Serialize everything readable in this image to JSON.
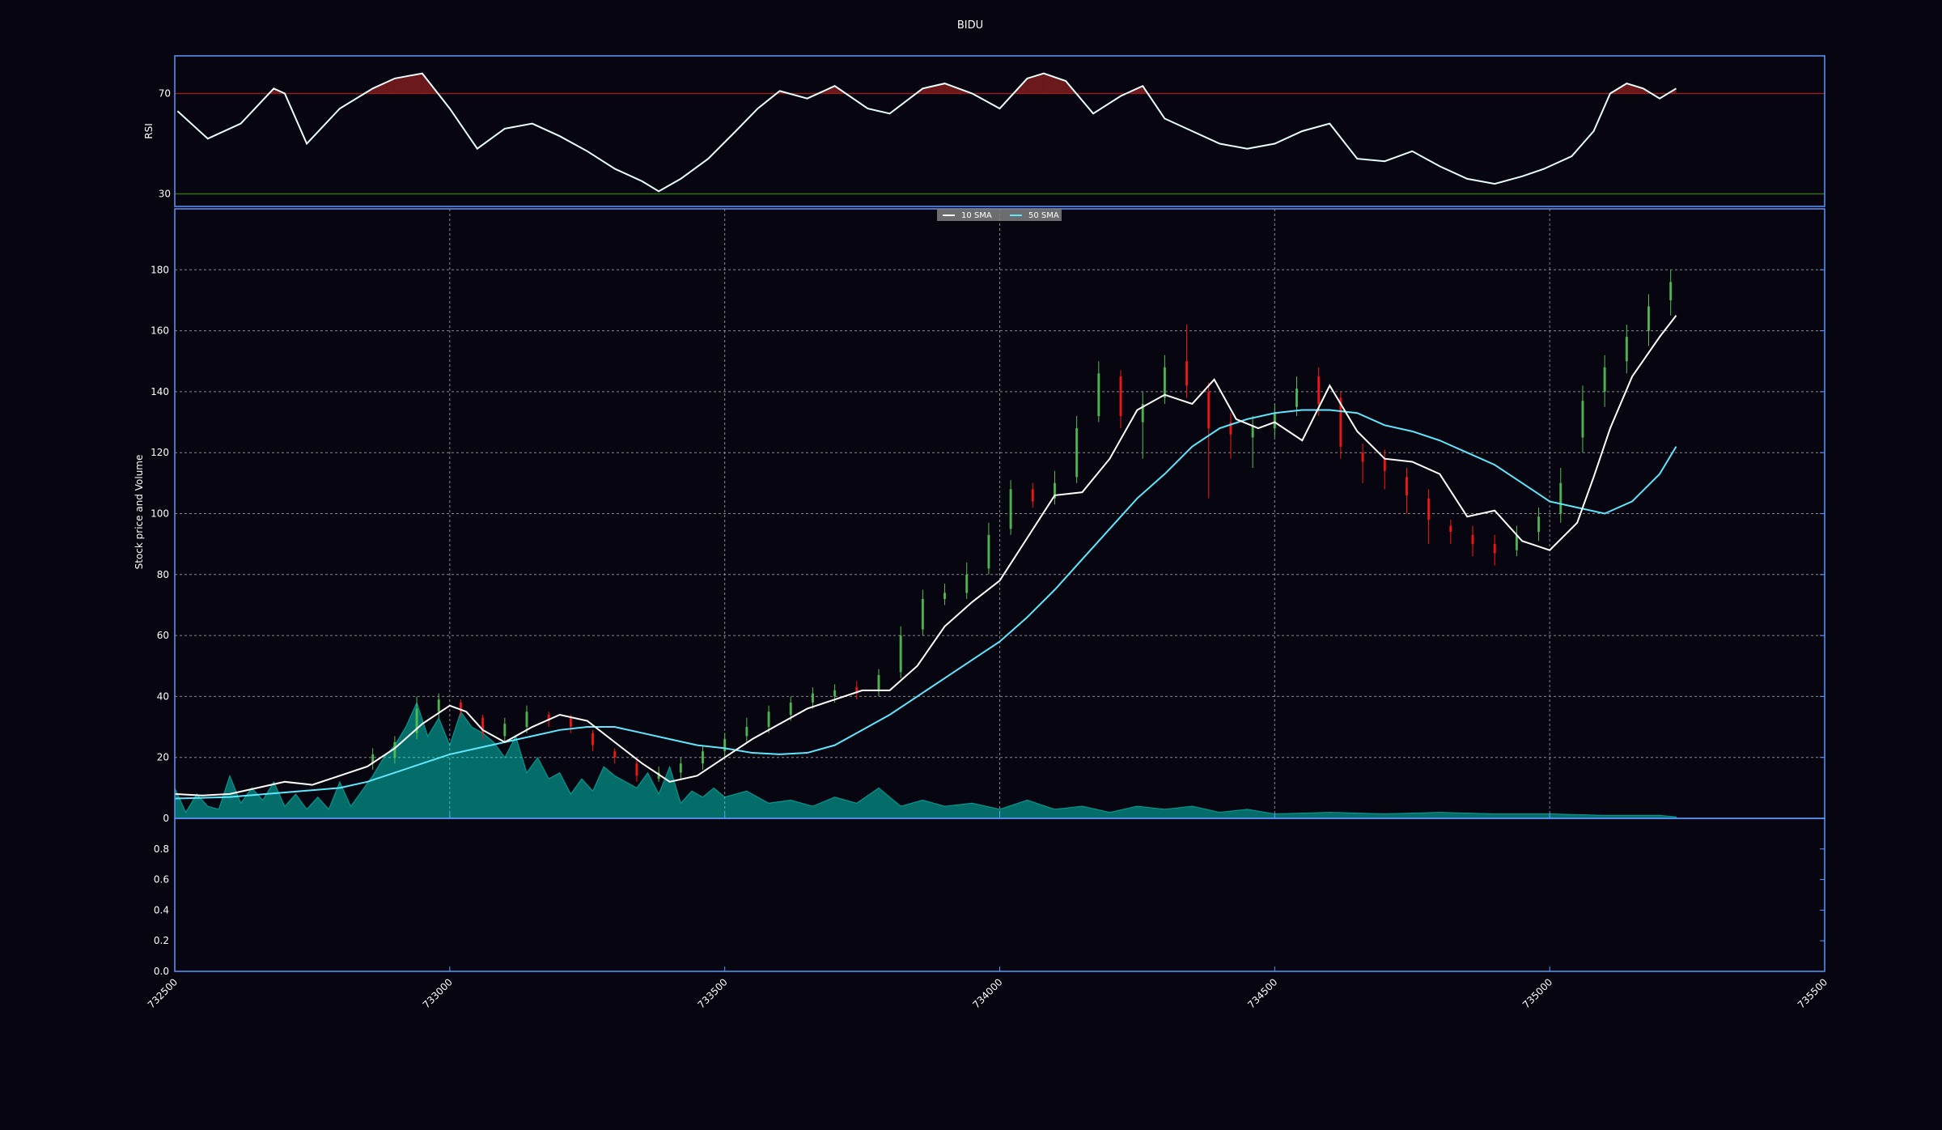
{
  "title": "BIDU",
  "colors": {
    "background": "#07050f",
    "axes_frame": "#5998ff",
    "rsi_line": "#eaffff",
    "rsi_overbought": "#8f2020",
    "rsi_oversold": "#386d13",
    "sma_short": "#ffffff",
    "sma_long": "#5ee8ff",
    "volume_fill": "#00ffe8",
    "candle_up": "#53c156",
    "candle_down": "#ff1717",
    "grid": "#aaaaaa",
    "legend_bg": "#7f7f7f"
  },
  "rsi_panel": {
    "ylabel": "RSI",
    "ticks": [
      "30",
      "70"
    ],
    "overbought": 70,
    "oversold": 30
  },
  "legend": {
    "entries": [
      "10 SMA",
      "50 SMA"
    ],
    "placement": "top-center"
  },
  "price_panel": {
    "ylabel": "Stock price and Volume",
    "yticks": [
      "0",
      "20",
      "40",
      "60",
      "80",
      "100",
      "120",
      "140",
      "160",
      "180"
    ],
    "grid": true
  },
  "volume_panel": {
    "yticks": [
      "0.0",
      "0.2",
      "0.4",
      "0.6",
      "0.8"
    ]
  },
  "xticks": [
    "732500",
    "733000",
    "733500",
    "734000",
    "734500",
    "735000",
    "735500"
  ],
  "chart_data": {
    "type": "line",
    "title": "BIDU",
    "x_range": [
      732500,
      735500
    ],
    "price_ylim": [
      0,
      200
    ],
    "rsi_ylim": [
      25,
      85
    ],
    "rsi": {
      "x": [
        732505,
        732560,
        732620,
        732680,
        732700,
        732740,
        732800,
        732860,
        732900,
        732950,
        733000,
        733050,
        733100,
        733150,
        733200,
        733250,
        733300,
        733350,
        733380,
        733420,
        733470,
        733520,
        733560,
        733600,
        733650,
        733700,
        733760,
        733800,
        733860,
        733900,
        733950,
        734000,
        734050,
        734080,
        734120,
        734170,
        734220,
        734260,
        734300,
        734350,
        734400,
        734450,
        734500,
        734550,
        734600,
        734650,
        734700,
        734750,
        734800,
        734850,
        734900,
        734950,
        734990,
        735040,
        735080,
        735110,
        735140,
        735170,
        735200,
        735230
      ],
      "values": [
        63,
        52,
        58,
        72,
        70,
        50,
        64,
        72,
        76,
        78,
        64,
        48,
        56,
        58,
        53,
        47,
        40,
        35,
        31,
        36,
        44,
        55,
        64,
        71,
        68,
        73,
        64,
        62,
        72,
        74,
        70,
        64,
        76,
        78,
        75,
        62,
        69,
        73,
        60,
        55,
        50,
        48,
        50,
        55,
        58,
        44,
        43,
        47,
        41,
        36,
        34,
        37,
        40,
        45,
        55,
        70,
        74,
        72,
        68,
        72
      ]
    },
    "series": [
      {
        "name": "10 SMA",
        "x": [
          732500,
          732550,
          732600,
          732650,
          732700,
          732750,
          732800,
          732850,
          732900,
          732950,
          733000,
          733030,
          733060,
          733100,
          733150,
          733200,
          733250,
          733300,
          733350,
          733400,
          733450,
          733500,
          733550,
          733600,
          733650,
          733700,
          733750,
          733800,
          733850,
          733900,
          733950,
          734000,
          734050,
          734100,
          734150,
          734200,
          734250,
          734300,
          734350,
          734390,
          734430,
          734470,
          734500,
          734550,
          734600,
          734650,
          734700,
          734750,
          734800,
          734850,
          734900,
          734950,
          735000,
          735050,
          735080,
          735110,
          735150,
          735200,
          735230
        ],
        "values": [
          8,
          7.5,
          8,
          10,
          12,
          11,
          14,
          17,
          23,
          31,
          37,
          35,
          29,
          25,
          30,
          34,
          32,
          25,
          18,
          12,
          14,
          20,
          26,
          31,
          36,
          39,
          42,
          42,
          50,
          63,
          71,
          78,
          92,
          106,
          107,
          118,
          134,
          139,
          136,
          144,
          131,
          128,
          130,
          124,
          142,
          127,
          118,
          117,
          113,
          99,
          101,
          91,
          88,
          97,
          112,
          128,
          145,
          158,
          165
        ]
      },
      {
        "name": "50 SMA",
        "x": [
          732500,
          732600,
          732700,
          732800,
          732850,
          732900,
          732950,
          733000,
          733050,
          733100,
          733150,
          733200,
          733250,
          733300,
          733350,
          733400,
          733450,
          733500,
          733550,
          733600,
          733650,
          733700,
          733750,
          733800,
          733850,
          733900,
          733950,
          734000,
          734050,
          734100,
          734150,
          734200,
          734250,
          734300,
          734350,
          734400,
          734450,
          734500,
          734550,
          734600,
          734650,
          734700,
          734750,
          734800,
          734850,
          734900,
          734950,
          735000,
          735050,
          735100,
          735150,
          735200,
          735230
        ],
        "values": [
          6.5,
          7,
          8.5,
          10,
          12,
          15,
          18,
          21,
          23,
          25,
          27,
          29,
          30,
          30,
          28,
          26,
          24,
          23,
          21.5,
          21,
          21.5,
          24,
          29,
          34,
          40,
          46,
          52,
          58,
          66,
          75,
          85,
          95,
          105,
          113,
          122,
          128,
          131,
          133,
          134,
          134,
          133,
          129,
          127,
          124,
          120,
          116,
          110,
          104,
          102,
          100,
          104,
          113,
          122
        ]
      }
    ],
    "volume_area": {
      "x": [
        732500,
        732520,
        732540,
        732560,
        732580,
        732600,
        732620,
        732640,
        732660,
        732680,
        732700,
        732720,
        732740,
        732760,
        732780,
        732800,
        732820,
        732840,
        732860,
        732880,
        732900,
        732920,
        732940,
        732960,
        732980,
        733000,
        733020,
        733040,
        733060,
        733080,
        733100,
        733120,
        733140,
        733160,
        733180,
        733200,
        733220,
        733240,
        733260,
        733280,
        733300,
        733320,
        733340,
        733360,
        733380,
        733400,
        733420,
        733440,
        733460,
        733480,
        733500,
        733540,
        733580,
        733620,
        733660,
        733700,
        733740,
        733780,
        733820,
        733860,
        733900,
        733950,
        734000,
        734050,
        734100,
        734150,
        734200,
        734250,
        734300,
        734350,
        734400,
        734450,
        734500,
        734600,
        734700,
        734800,
        734900,
        735000,
        735100,
        735200,
        735230
      ],
      "values": [
        10,
        2,
        8,
        4,
        3,
        14,
        5,
        10,
        6,
        12,
        4,
        8,
        3,
        7,
        3,
        12,
        4,
        9,
        14,
        20,
        24,
        30,
        38,
        27,
        33,
        24,
        35,
        30,
        28,
        25,
        20,
        27,
        15,
        20,
        13,
        15,
        8,
        13,
        9,
        17,
        14,
        12,
        10,
        15,
        8,
        17,
        5,
        9,
        7,
        10,
        7,
        9,
        5,
        6,
        4,
        7,
        5,
        10,
        4,
        6,
        4,
        5,
        3,
        6,
        3,
        4,
        2,
        4,
        3,
        4,
        2,
        3,
        1.5,
        2,
        1.5,
        2,
        1.5,
        1.5,
        1,
        1,
        0.5
      ]
    },
    "candles_note": "",
    "candles": {
      "x": [
        732860,
        732900,
        732940,
        732980,
        733020,
        733060,
        733100,
        733140,
        733180,
        733220,
        733260,
        733300,
        733340,
        733380,
        733420,
        733460,
        733500,
        733540,
        733580,
        733620,
        733660,
        733700,
        733740,
        733780,
        733820,
        733860,
        733900,
        733940,
        733980,
        734020,
        734060,
        734100,
        734140,
        734180,
        734220,
        734260,
        734300,
        734340,
        734380,
        734420,
        734460,
        734500,
        734540,
        734580,
        734620,
        734660,
        734700,
        734740,
        734780,
        734820,
        734860,
        734900,
        734940,
        734980,
        735020,
        735060,
        735100,
        735140,
        735180,
        735220
      ],
      "open": [
        18,
        20,
        28,
        35,
        38,
        33,
        27,
        30,
        34,
        33,
        28,
        22,
        18,
        13,
        15,
        18,
        22,
        27,
        30,
        34,
        38,
        40,
        43,
        42,
        48,
        62,
        72,
        74,
        82,
        95,
        108,
        105,
        112,
        132,
        145,
        130,
        138,
        150,
        140,
        130,
        125,
        128,
        135,
        145,
        138,
        120,
        118,
        112,
        105,
        96,
        93,
        90,
        88,
        94,
        100,
        125,
        140,
        150,
        160,
        170
      ],
      "close": [
        21,
        25,
        36,
        39,
        35,
        28,
        31,
        35,
        32,
        30,
        24,
        20,
        14,
        15,
        18,
        22,
        26,
        30,
        35,
        38,
        41,
        42,
        41,
        47,
        60,
        72,
        74,
        80,
        93,
        108,
        104,
        110,
        128,
        146,
        132,
        136,
        148,
        142,
        128,
        126,
        129,
        133,
        141,
        136,
        122,
        117,
        114,
        106,
        98,
        94,
        90,
        87,
        93,
        99,
        110,
        137,
        148,
        158,
        168,
        176
      ],
      "high": [
        23,
        27,
        40,
        41,
        39,
        34,
        33,
        37,
        35,
        34,
        29,
        23,
        19,
        17,
        20,
        24,
        28,
        33,
        37,
        40,
        43,
        44,
        45,
        49,
        63,
        75,
        77,
        84,
        97,
        111,
        110,
        114,
        132,
        150,
        147,
        140,
        152,
        162,
        143,
        133,
        132,
        136,
        145,
        148,
        140,
        123,
        121,
        115,
        108,
        98,
        96,
        93,
        96,
        102,
        115,
        142,
        152,
        162,
        172,
        180
      ],
      "low": [
        16,
        18,
        26,
        33,
        33,
        26,
        25,
        28,
        30,
        28,
        22,
        18,
        12,
        12,
        13,
        16,
        20,
        25,
        28,
        32,
        36,
        38,
        39,
        40,
        46,
        60,
        70,
        72,
        80,
        93,
        102,
        103,
        110,
        130,
        128,
        118,
        136,
        138,
        105,
        118,
        115,
        125,
        132,
        132,
        118,
        110,
        108,
        100,
        90,
        90,
        86,
        83,
        86,
        91,
        97,
        120,
        135,
        146,
        155,
        165
      ]
    }
  }
}
